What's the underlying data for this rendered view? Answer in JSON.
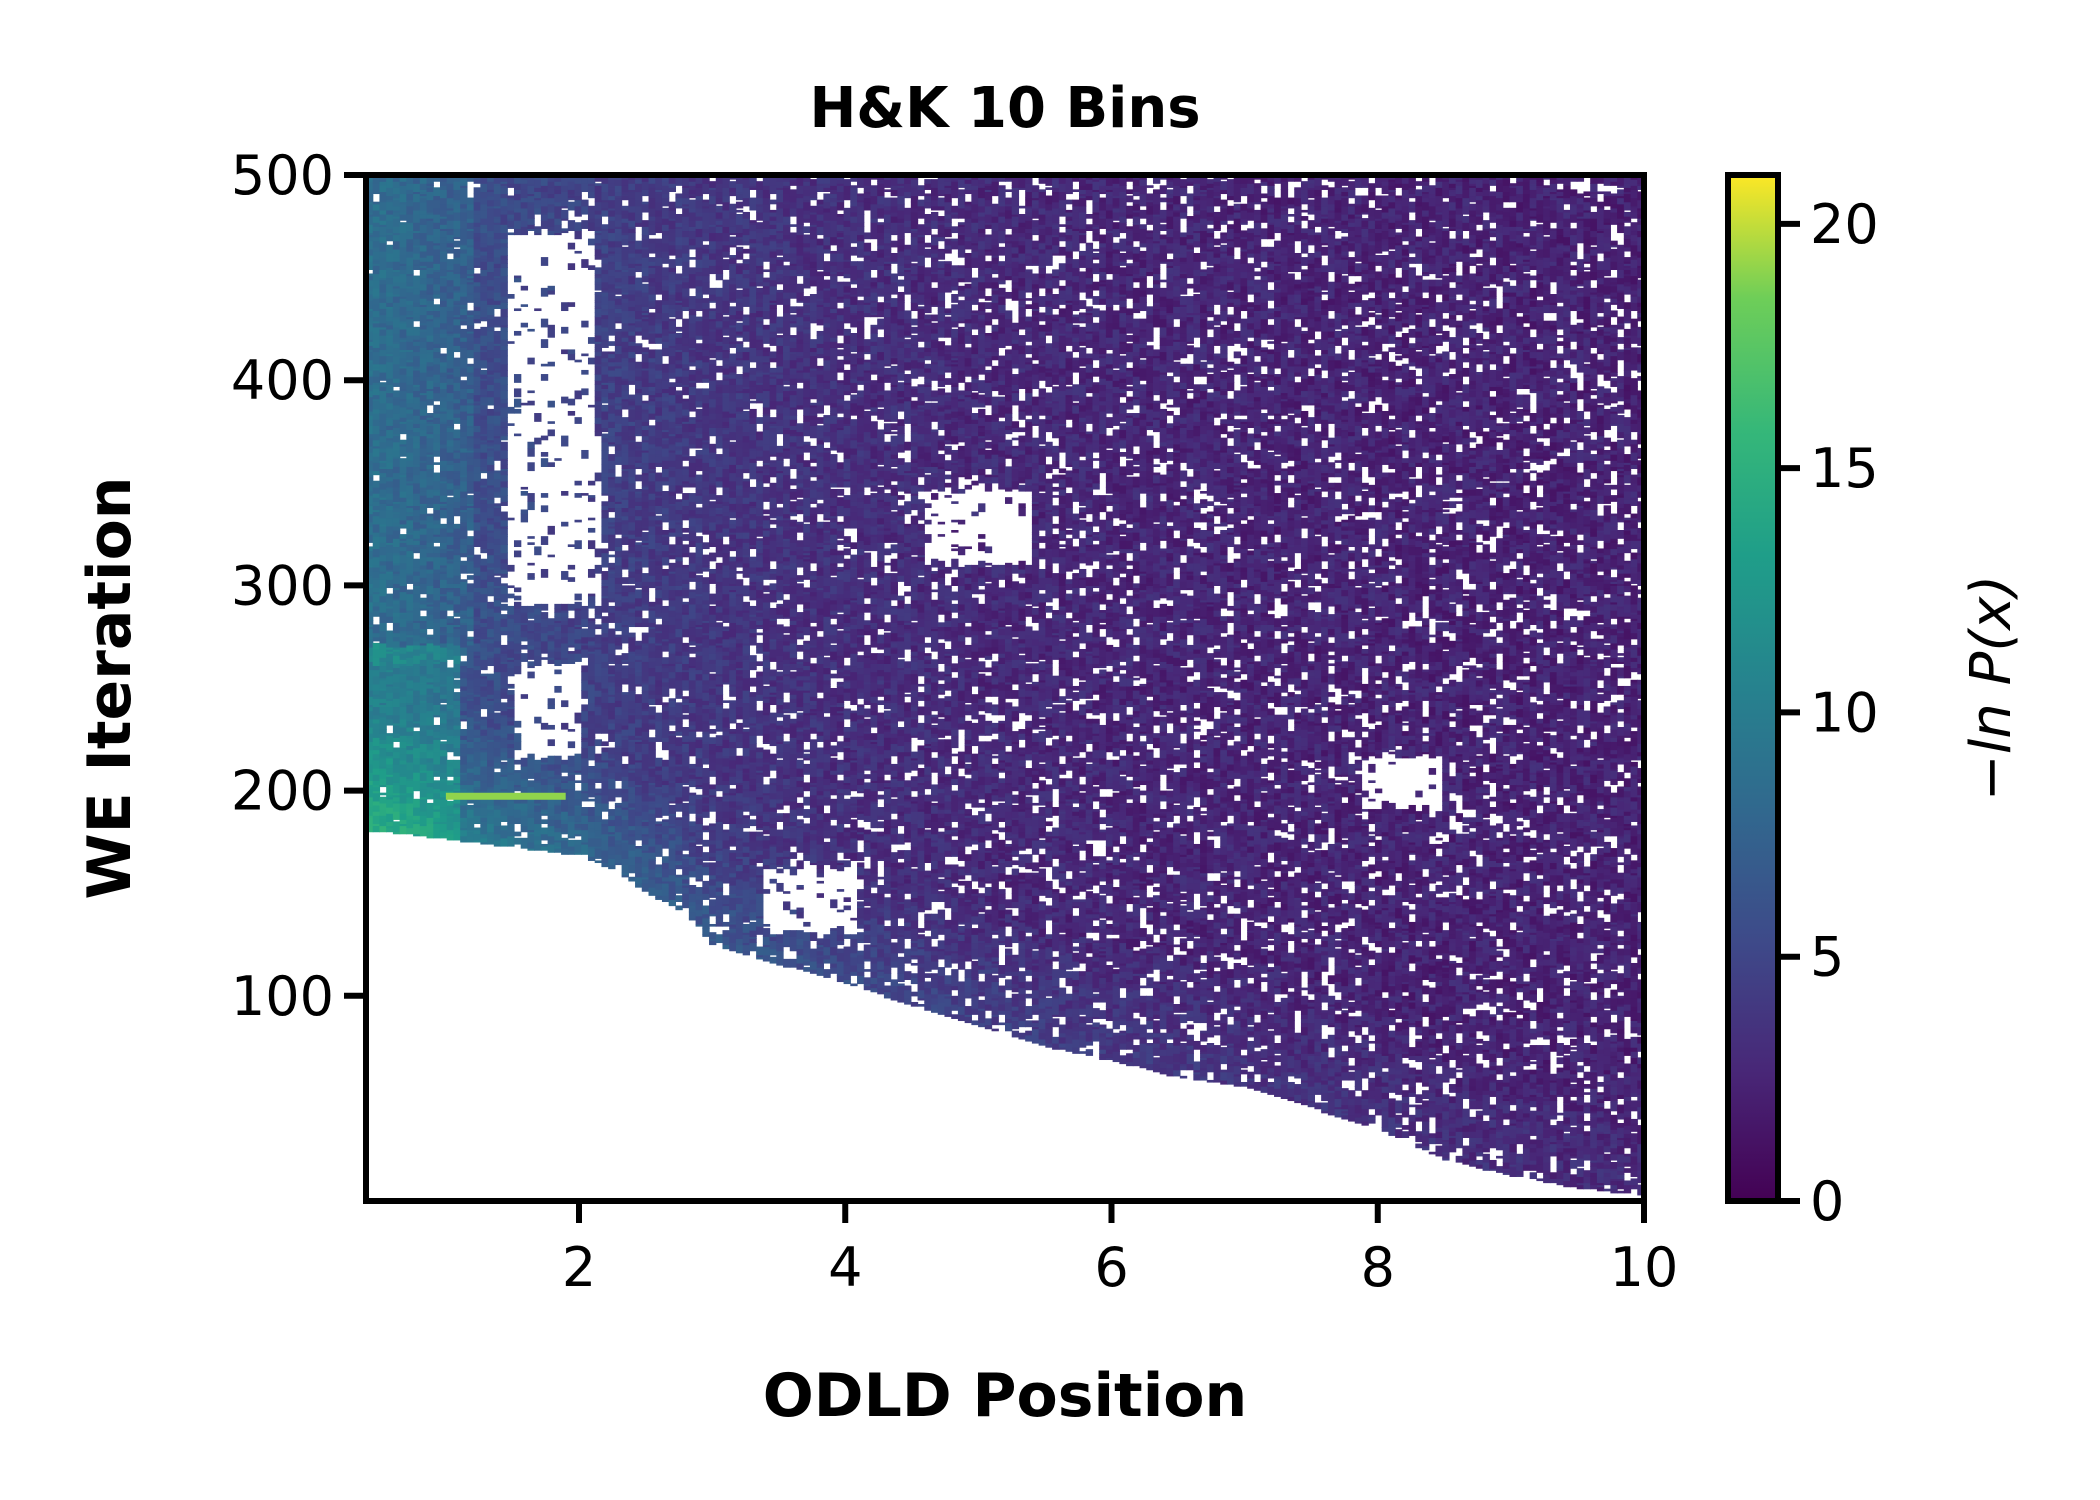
{
  "chart_data": {
    "type": "heatmap",
    "title": "H&K 10 Bins",
    "xlabel": "ODLD Position",
    "ylabel": "WE Iteration",
    "xlim": [
      0.4,
      10
    ],
    "ylim": [
      0,
      500
    ],
    "xticks": [
      2,
      4,
      6,
      8,
      10
    ],
    "yticks": [
      100,
      200,
      300,
      400,
      500
    ],
    "colorbar": {
      "label": "−ln P(x)",
      "range": [
        0,
        21
      ],
      "ticks": [
        0,
        5,
        10,
        15,
        20
      ],
      "colormap": "viridis"
    },
    "frontier": [
      [
        0.5,
        180
      ],
      [
        1.0,
        176
      ],
      [
        1.5,
        172
      ],
      [
        2.0,
        168
      ],
      [
        2.3,
        160
      ],
      [
        2.5,
        150
      ],
      [
        2.8,
        140
      ],
      [
        3.0,
        125
      ],
      [
        3.3,
        118
      ],
      [
        3.8,
        110
      ],
      [
        4.5,
        95
      ],
      [
        5.0,
        85
      ],
      [
        5.5,
        75
      ],
      [
        6.0,
        68
      ],
      [
        6.5,
        60
      ],
      [
        7.0,
        55
      ],
      [
        7.5,
        45
      ],
      [
        8.0,
        35
      ],
      [
        8.5,
        20
      ],
      [
        9.0,
        12
      ],
      [
        9.5,
        6
      ],
      [
        10.0,
        2
      ]
    ],
    "hotspot": {
      "x": [
        1.0,
        1.9
      ],
      "y": 197,
      "value": 19
    },
    "band_levels": [
      {
        "x": 0.6,
        "y_start": 200,
        "y_end": 500,
        "value": 8
      },
      {
        "x": 0.6,
        "y_start": 180,
        "y_end": 260,
        "value": 12
      },
      {
        "x": 2.7,
        "y_start": 110,
        "y_end": 170,
        "value": 11
      },
      {
        "x": 5.0,
        "y_start": 60,
        "y_end": 110,
        "value": 6
      },
      {
        "x": 9.0,
        "y_start": 300,
        "y_end": 500,
        "value": 1
      }
    ],
    "grid": false
  }
}
